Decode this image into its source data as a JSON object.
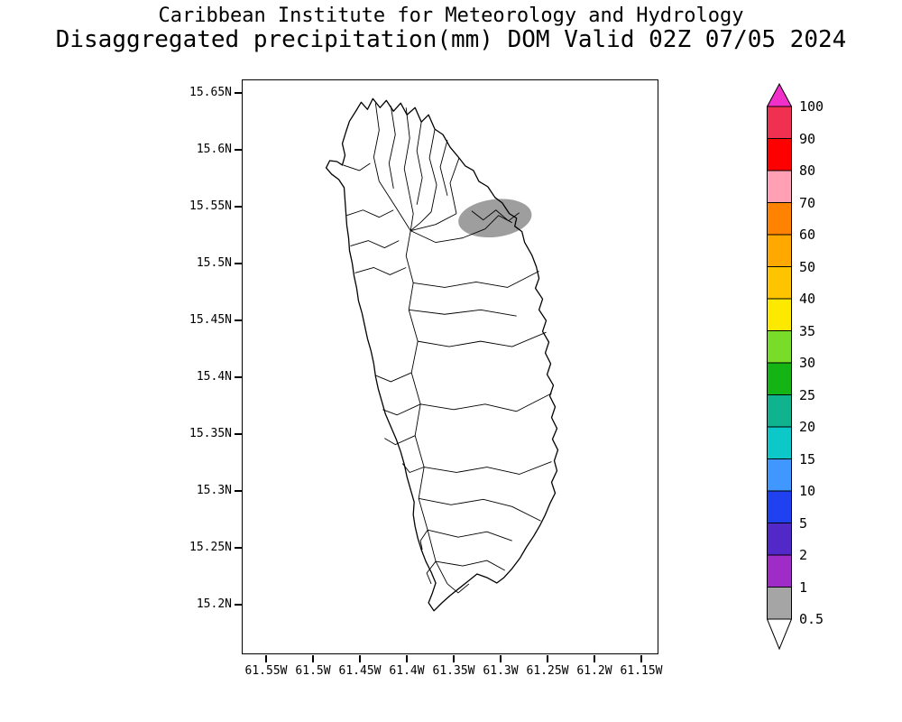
{
  "header": {
    "line1": "Caribbean Institute for Meteorology and Hydrology",
    "line2": "Disaggregated precipitation(mm) DOM Valid 02Z 07/05 2024"
  },
  "map": {
    "region_name": "Dominica (DOM)",
    "y_axis_labels": [
      "15.65N",
      "15.6N",
      "15.55N",
      "15.5N",
      "15.45N",
      "15.4N",
      "15.35N",
      "15.3N",
      "15.25N",
      "15.2N"
    ],
    "x_axis_labels": [
      "61.55W",
      "61.5W",
      "61.45W",
      "61.4W",
      "61.35W",
      "61.3W",
      "61.25W",
      "61.2W",
      "61.15W"
    ],
    "shaded_region": {
      "description": "precipitation shaded area 0.5-1 mm",
      "color": "#9e9e9e",
      "approx_center": {
        "lat": "15.54N",
        "lon": "61.31W"
      }
    }
  },
  "colorbar": {
    "labels": [
      "100",
      "90",
      "80",
      "70",
      "60",
      "50",
      "40",
      "35",
      "30",
      "25",
      "20",
      "15",
      "10",
      "5",
      "2",
      "1",
      "0.5"
    ],
    "segment_colors": [
      "#f03050",
      "#fd0000",
      "#ffa0b4",
      "#ff8200",
      "#ffa800",
      "#ffc400",
      "#fde800",
      "#78dc28",
      "#14b414",
      "#0fb48f",
      "#0cc8c8",
      "#3f97ff",
      "#2041f0",
      "#5228c8",
      "#a02cc8",
      "#a5a5a5"
    ],
    "arrow_top_color": "#f030c8",
    "arrow_bottom_color": "#ffffff"
  }
}
